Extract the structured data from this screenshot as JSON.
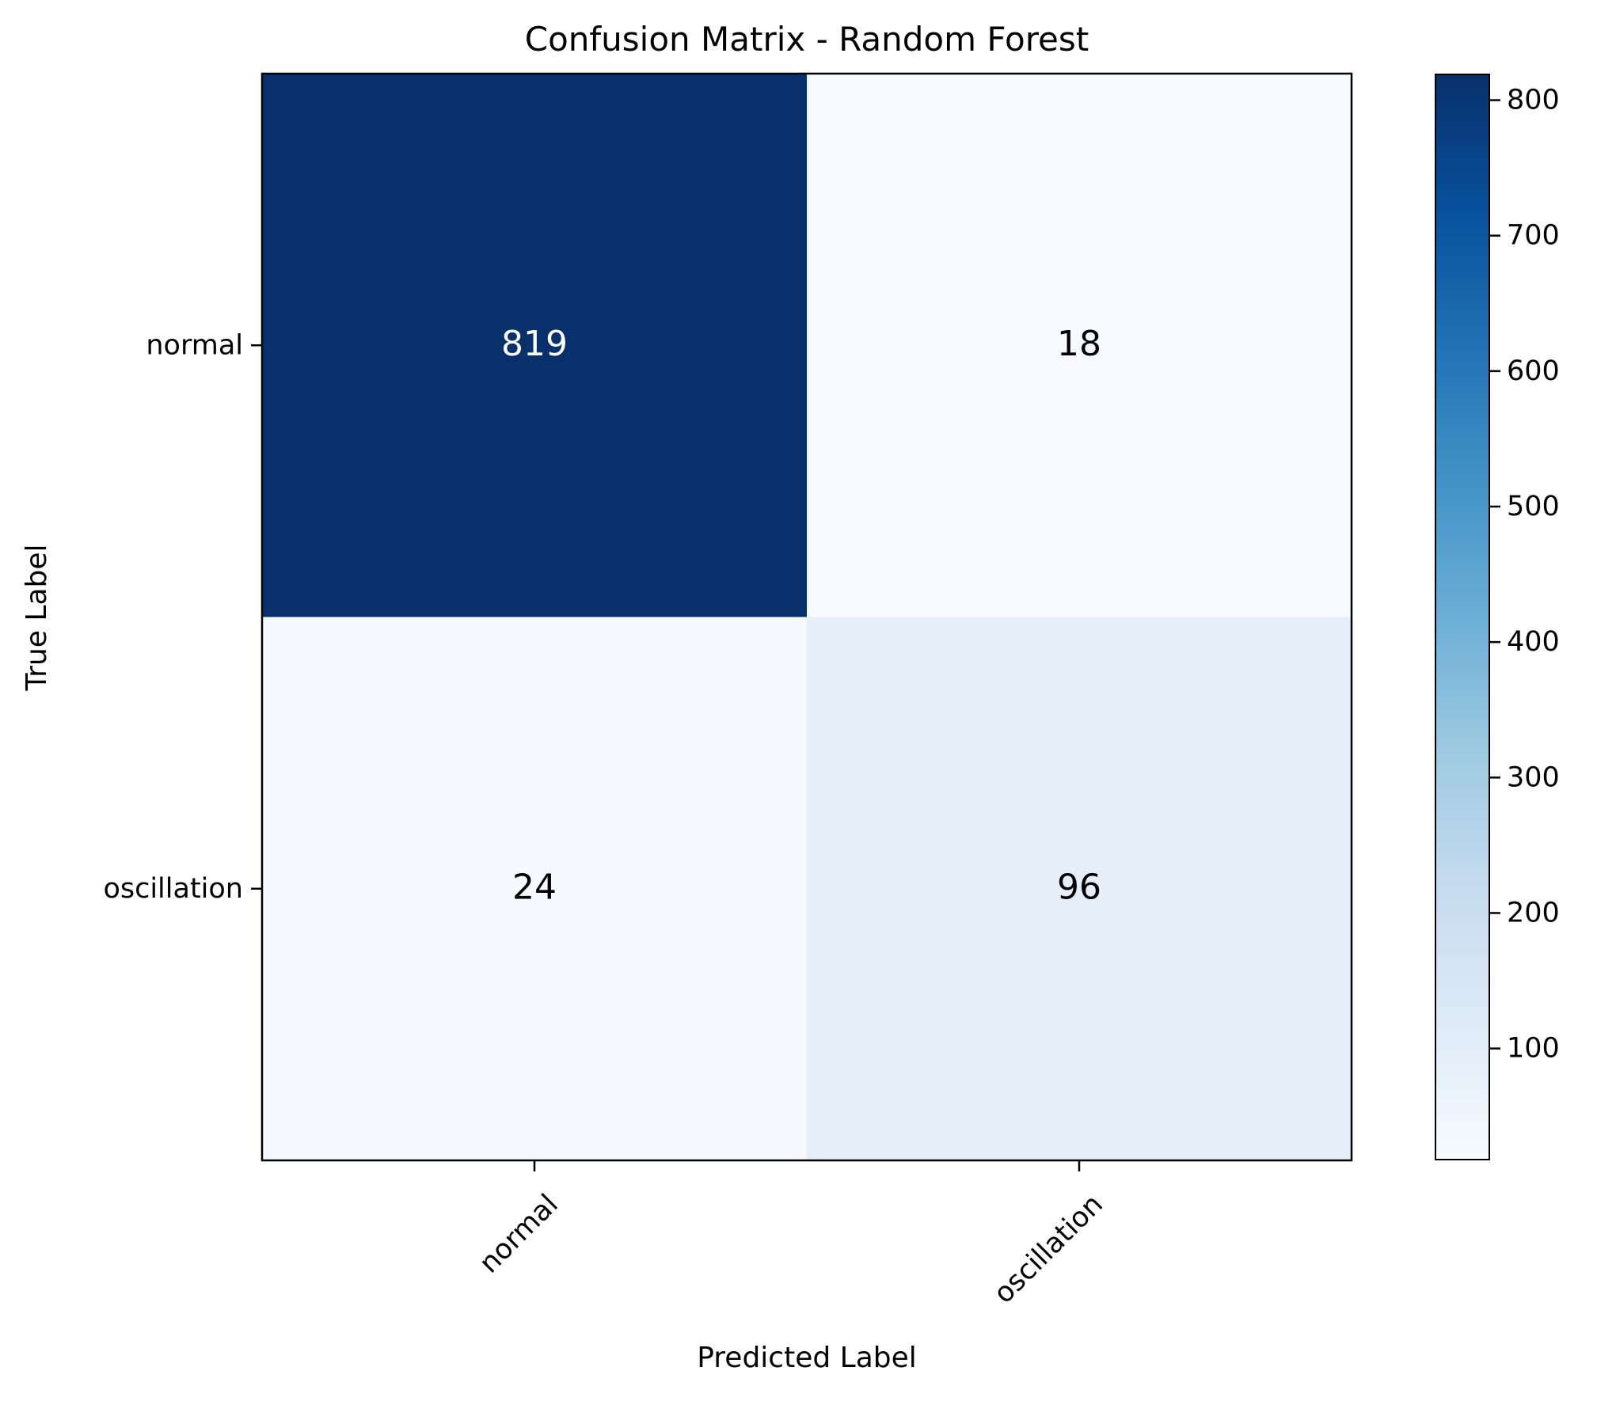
{
  "chart_data": {
    "type": "heatmap",
    "title": "Confusion Matrix - Random Forest",
    "xlabel": "Predicted Label",
    "ylabel": "True Label",
    "x_categories": [
      "normal",
      "oscillation"
    ],
    "y_categories": [
      "normal",
      "oscillation"
    ],
    "matrix": [
      [
        819,
        18
      ],
      [
        24,
        96
      ]
    ],
    "colormap": "Blues",
    "colorbar": {
      "vmin": 18,
      "vmax": 819,
      "ticks": [
        100,
        200,
        300,
        400,
        500,
        600,
        700,
        800
      ]
    },
    "grid": false
  }
}
